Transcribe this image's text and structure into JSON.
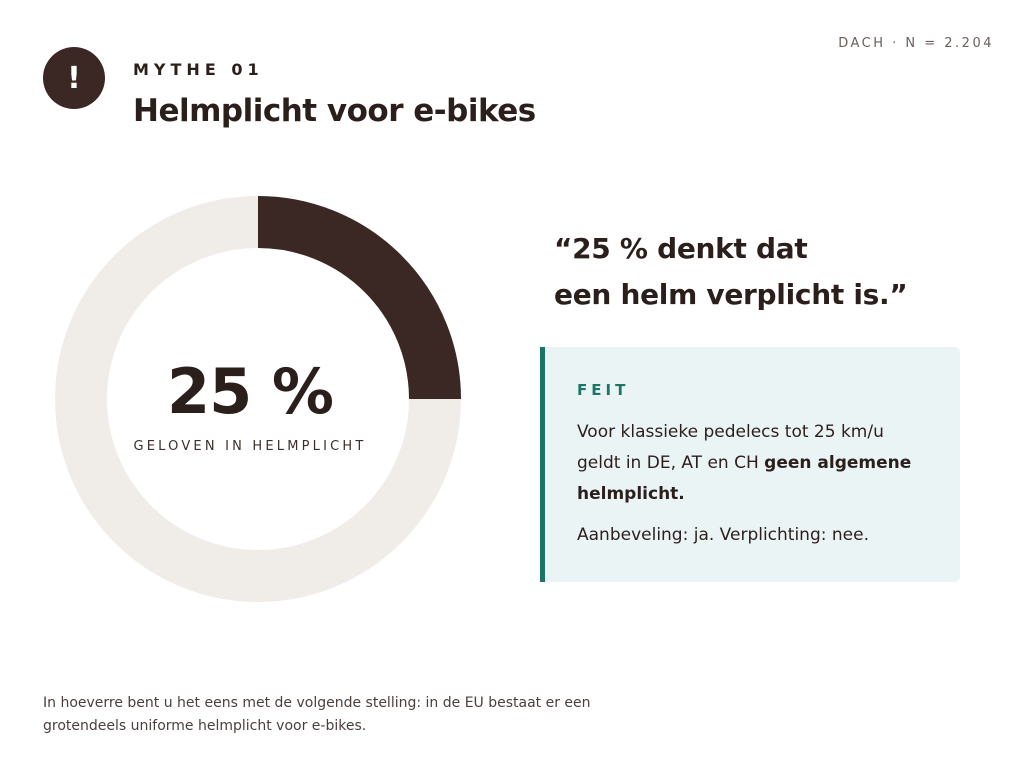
{
  "header": {
    "badge_symbol": "!",
    "eyebrow": "MYTHE 01",
    "title": "Helmplicht voor e-bikes",
    "meta": "DACH · N = 2.204"
  },
  "chart_data": {
    "type": "pie",
    "value_percent": 25,
    "value_label": "25 %",
    "caption": "GELOVEN IN HELMPLICHT",
    "colors": {
      "filled": "#3b2824",
      "track": "#f0ede9"
    }
  },
  "quote": {
    "line1": "“25 % denkt dat",
    "line2": "een helm verplicht is.”"
  },
  "fact": {
    "label": "FEIT",
    "text_before": "Voor klassieke pedelecs tot 25 km/u geldt in DE, AT en CH ",
    "text_bold": "geen algemene helmplicht.",
    "recommendation": "Aanbeveling: ja. Verplichting: nee.",
    "accent": "#1c7566"
  },
  "footnote": "In hoeverre bent u het eens met de volgende stelling: in de EU bestaat er een grotendeels uniforme helmplicht voor e-bikes."
}
